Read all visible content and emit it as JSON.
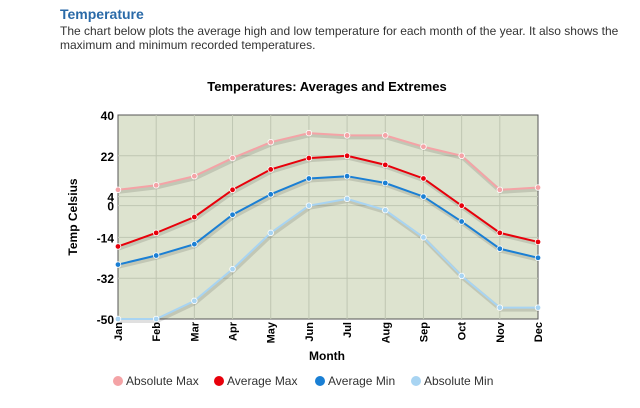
{
  "section": {
    "title": "Temperature",
    "description": "The chart below plots the average high and low temperature for each month of the year. It also shows the maximum and minimum recorded temperatures."
  },
  "chart_data": {
    "type": "line",
    "title": "Temperatures: Averages and Extremes",
    "xlabel": "Month",
    "ylabel": "Temp Celsius",
    "categories": [
      "Jan",
      "Feb",
      "Mar",
      "Apr",
      "May",
      "Jun",
      "Jul",
      "Aug",
      "Sep",
      "Oct",
      "Nov",
      "Dec"
    ],
    "yticks": [
      40,
      22,
      4,
      0,
      -14,
      -32,
      -50
    ],
    "ylim": [
      -50,
      40
    ],
    "grid": true,
    "legend_position": "bottom",
    "plot_background": "#dde3cf",
    "series": [
      {
        "name": "Absolute Max",
        "color": "#f4a3a6",
        "values": [
          7,
          9,
          13,
          21,
          28,
          32,
          31,
          31,
          26,
          22,
          7,
          8
        ]
      },
      {
        "name": "Average Max",
        "color": "#e8000b",
        "values": [
          -18,
          -12,
          -5,
          7,
          16,
          21,
          22,
          18,
          12,
          0,
          -12,
          -16
        ]
      },
      {
        "name": "Average Min",
        "color": "#1a7fd4",
        "values": [
          -26,
          -22,
          -17,
          -4,
          5,
          12,
          13,
          10,
          4,
          -7,
          -19,
          -23
        ]
      },
      {
        "name": "Absolute Min",
        "color": "#a8d4f2",
        "values": [
          -50,
          -50,
          -42,
          -28,
          -12,
          0,
          3,
          -2,
          -14,
          -31,
          -45,
          -45
        ]
      }
    ]
  }
}
